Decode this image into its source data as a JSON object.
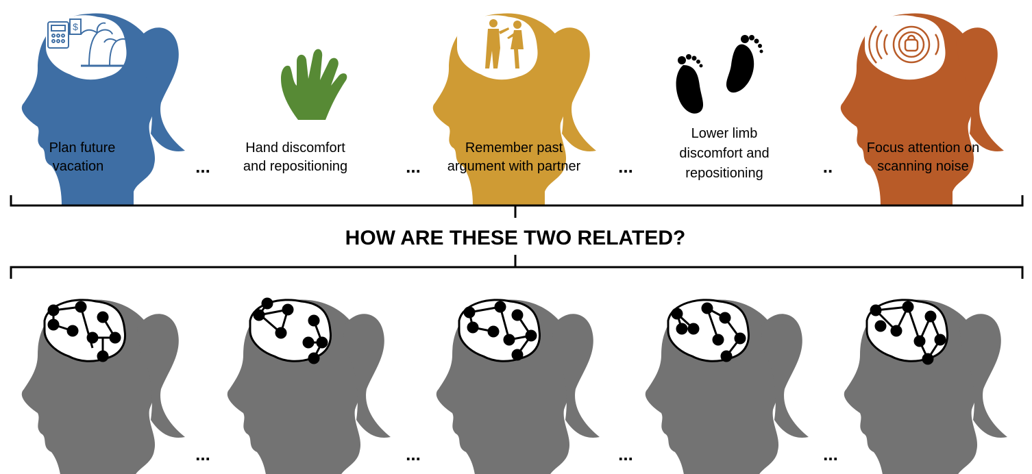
{
  "colors": {
    "blue_head": "#3e6ea4",
    "green_hand": "#578a35",
    "gold_head": "#cf9b34",
    "black_feet": "#000000",
    "orange_head": "#b85b28",
    "gray_head": "#737373",
    "network": "#000000"
  },
  "question": "HOW ARE THESE TWO RELATED?",
  "ellipsis": "...",
  "ellipsis_short": "..",
  "states": [
    {
      "icon": "vacation-planning-icon",
      "lines": [
        "Plan future",
        "vacation"
      ]
    },
    {
      "icon": "hand-icon",
      "lines": [
        "Hand discomfort",
        "and repositioning"
      ]
    },
    {
      "icon": "argument-couple-icon",
      "lines": [
        "Remember past",
        "argument with partner"
      ]
    },
    {
      "icon": "feet-icon",
      "lines": [
        "Lower limb",
        "discomfort and",
        "repositioning"
      ]
    },
    {
      "icon": "scanner-icon",
      "lines": [
        "Focus attention on",
        "scanning noise"
      ]
    }
  ],
  "brain_networks": 5
}
